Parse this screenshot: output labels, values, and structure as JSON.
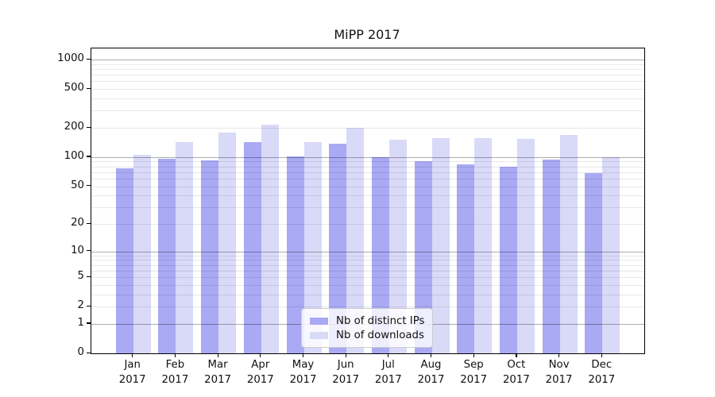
{
  "title": "MiPP 2017",
  "chart_data": {
    "type": "bar",
    "title": "MiPP 2017",
    "year_label": "2017",
    "categories": [
      "Jan",
      "Feb",
      "Mar",
      "Apr",
      "May",
      "Jun",
      "Jul",
      "Aug",
      "Sep",
      "Oct",
      "Nov",
      "Dec"
    ],
    "series": [
      {
        "name": "Nb of distinct IPs",
        "color": "#a9a9f4",
        "values": [
          76,
          97,
          93,
          142,
          102,
          137,
          100,
          91,
          85,
          80,
          94,
          68
        ]
      },
      {
        "name": "Nb of downloads",
        "color": "#d9d9f8",
        "values": [
          105,
          143,
          180,
          215,
          144,
          200,
          150,
          158,
          156,
          154,
          168,
          100
        ]
      }
    ],
    "yscale": "log1p",
    "yticks": [
      1000,
      500,
      200,
      100,
      50,
      20,
      10,
      5,
      2,
      1,
      0
    ],
    "ylim": [
      0,
      1300
    ],
    "grid": "on",
    "legend_position": "lower center",
    "colors": {
      "grid_major": "rgba(0,0,0,0.32)",
      "grid_minor": "rgba(0,0,0,0.09)",
      "spine": "#000000",
      "text": "#111111"
    }
  }
}
